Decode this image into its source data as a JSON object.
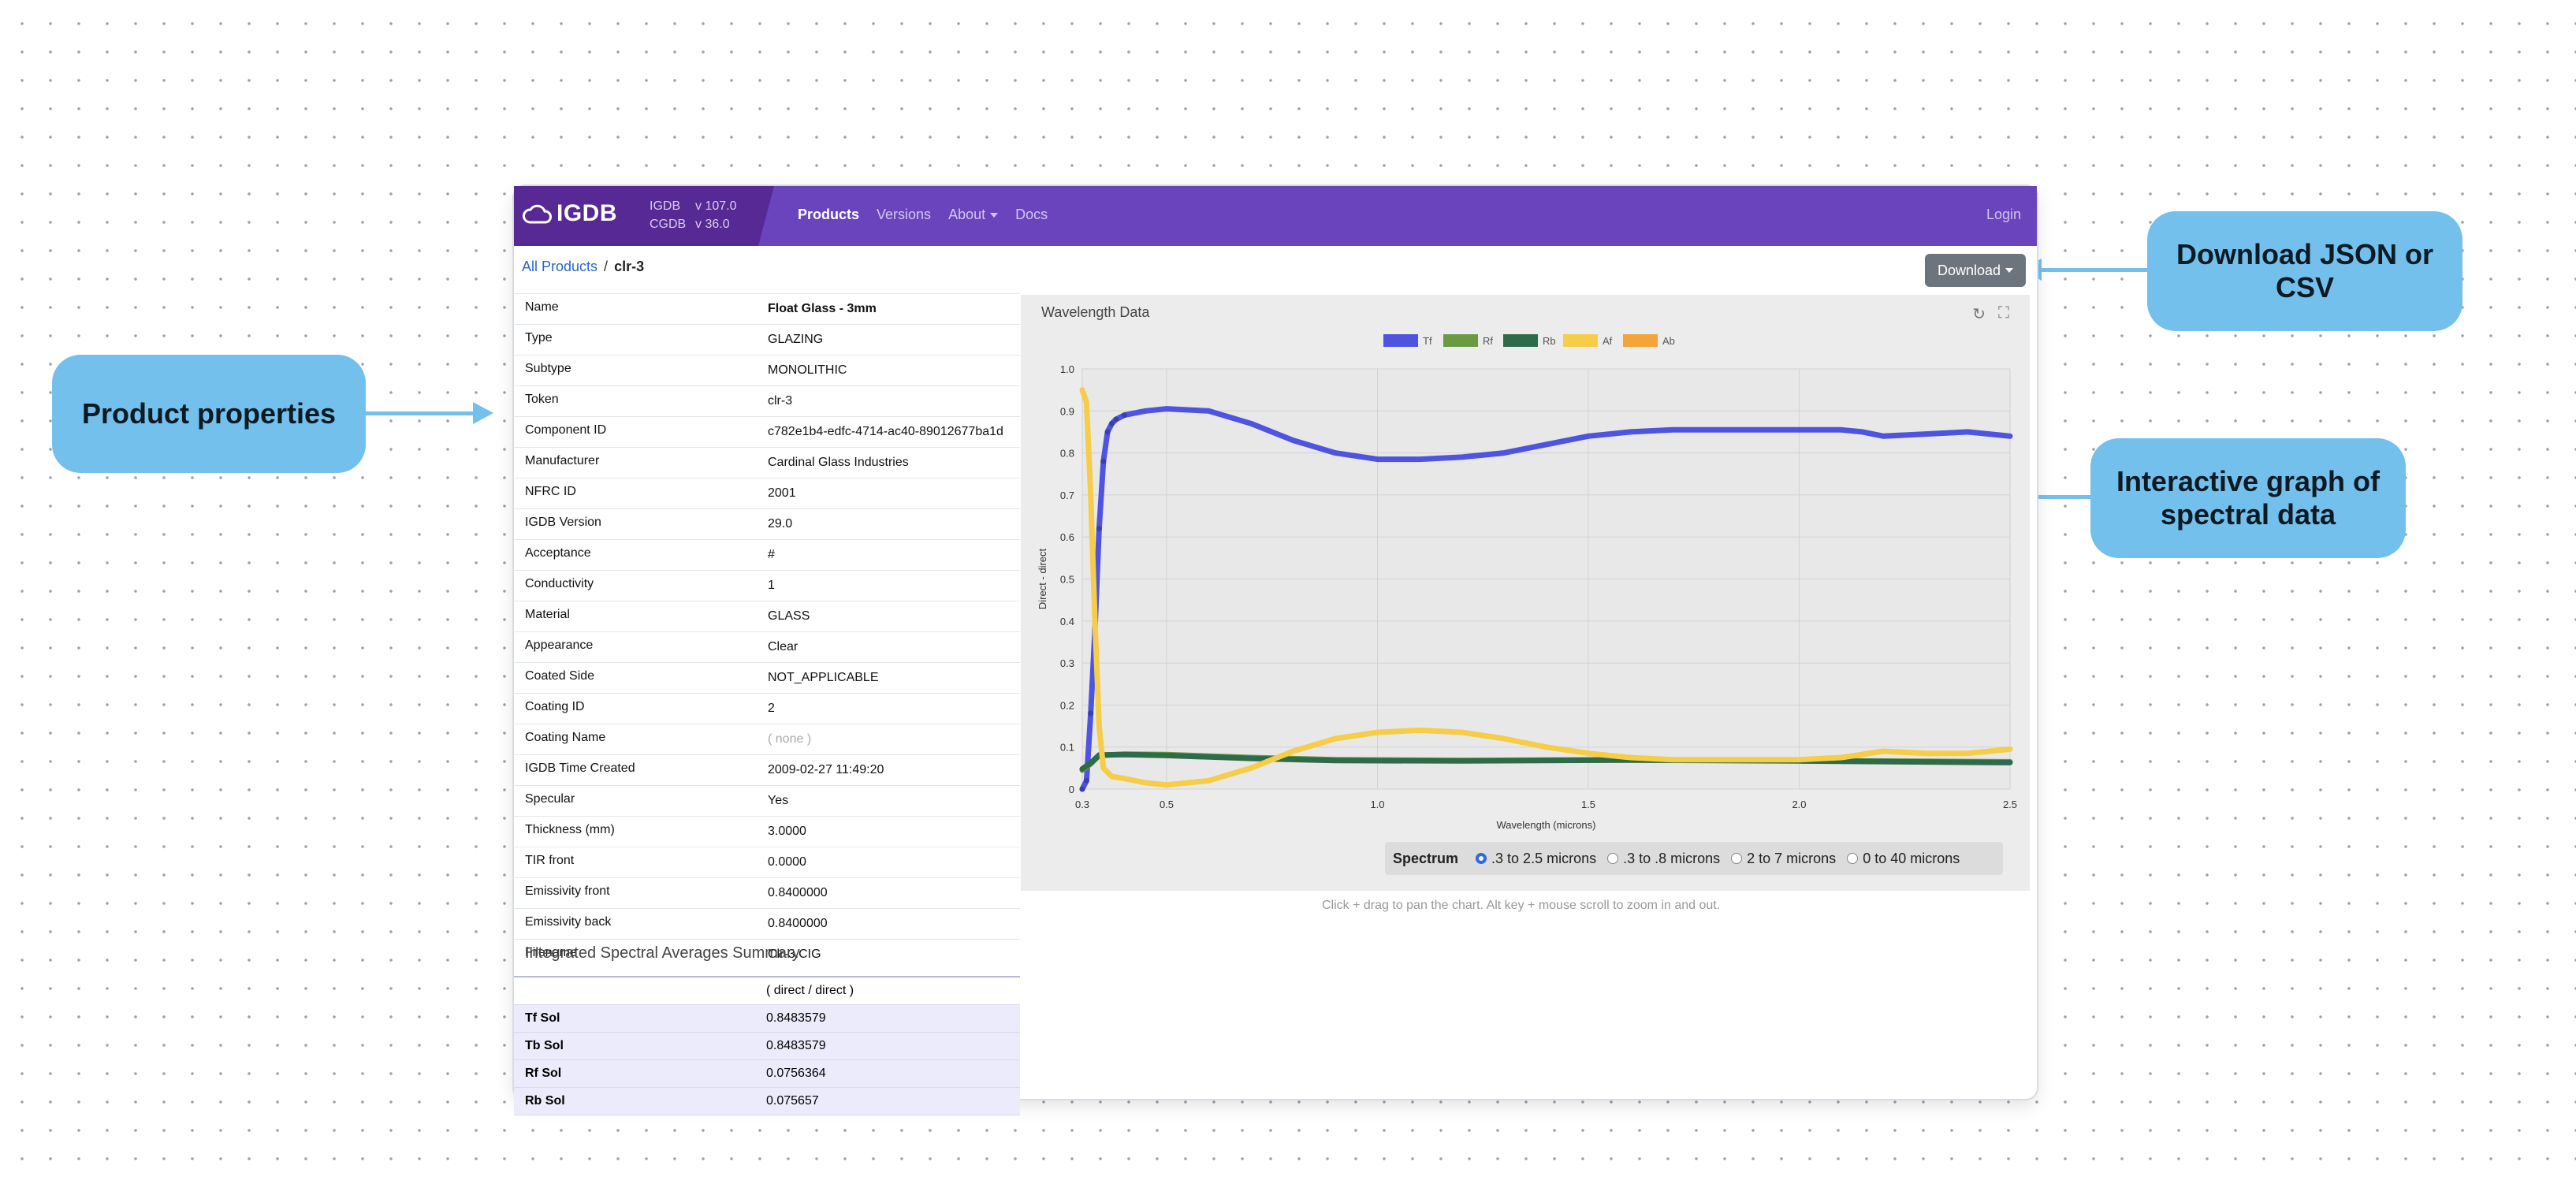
{
  "callouts": {
    "properties": "Product properties",
    "download": "Download JSON or CSV",
    "graph": "Interactive graph of spectral data"
  },
  "app": {
    "brand": "IGDB",
    "versions": [
      {
        "name": "IGDB",
        "version": "v 107.0"
      },
      {
        "name": "CGDB",
        "version": "v 36.0"
      }
    ],
    "nav": [
      "Products",
      "Versions",
      "About",
      "Docs"
    ],
    "login": "Login",
    "breadcrumb": {
      "root": "All Products",
      "sep": "/",
      "current": "clr-3"
    },
    "download_label": "Download"
  },
  "properties": [
    [
      "Name",
      "Float Glass - 3mm"
    ],
    [
      "Type",
      "GLAZING"
    ],
    [
      "Subtype",
      "MONOLITHIC"
    ],
    [
      "Token",
      "clr-3"
    ],
    [
      "Component ID",
      "c782e1b4-edfc-4714-ac40-89012677ba1d"
    ],
    [
      "Manufacturer",
      "Cardinal Glass Industries"
    ],
    [
      "NFRC ID",
      "2001"
    ],
    [
      "IGDB Version",
      "29.0"
    ],
    [
      "Acceptance",
      "#"
    ],
    [
      "Conductivity",
      "1"
    ],
    [
      "Material",
      "GLASS"
    ],
    [
      "Appearance",
      "Clear"
    ],
    [
      "Coated Side",
      "NOT_APPLICABLE"
    ],
    [
      "Coating ID",
      "2"
    ],
    [
      "Coating Name",
      "( none )"
    ],
    [
      "IGDB Time Created",
      "2009-02-27 11:49:20"
    ],
    [
      "Specular",
      "Yes"
    ],
    [
      "Thickness (mm)",
      "3.0000"
    ],
    [
      "TIR front",
      "0.0000"
    ],
    [
      "Emissivity front",
      "0.8400000"
    ],
    [
      "Emissivity back",
      "0.8400000"
    ],
    [
      "Filename",
      "Clr-3.CIG"
    ]
  ],
  "summary": {
    "title": "Integrated Spectral Averages Summary",
    "header": "( direct / direct )",
    "rows": [
      [
        "Tf Sol",
        "0.8483579"
      ],
      [
        "Tb Sol",
        "0.8483579"
      ],
      [
        "Rf Sol",
        "0.0756364"
      ],
      [
        "Rb Sol",
        "0.075657"
      ]
    ]
  },
  "panel": {
    "title": "Wavelength Data",
    "hint": "Click + drag to pan the chart. Alt key + mouse scroll to zoom in and out.",
    "spectrum_label": "Spectrum",
    "spectrum_options": [
      ".3 to 2.5 microns",
      ".3 to .8 microns",
      "2 to 7 microns",
      "0 to 40 microns"
    ],
    "spectrum_selected": 0
  },
  "chart_data": {
    "type": "line",
    "xlabel": "Wavelength (microns)",
    "ylabel": "Direct - direct",
    "xlim": [
      0.3,
      2.5
    ],
    "ylim": [
      0,
      1.0
    ],
    "xticks": [
      0.3,
      0.5,
      1.0,
      1.5,
      2.0,
      2.5
    ],
    "xtick_labels": [
      "0.3",
      "0.5",
      "1.0",
      "1.5",
      "2.0",
      "2.5"
    ],
    "yticks": [
      0,
      0.1,
      0.2,
      0.3,
      0.4,
      0.5,
      0.6,
      0.7,
      0.8,
      0.9,
      1.0
    ],
    "ytick_labels": [
      "0",
      "0.1",
      "0.2",
      "0.3",
      "0.4",
      "0.5",
      "0.6",
      "0.7",
      "0.8",
      "0.9",
      "1.0"
    ],
    "series": [
      {
        "name": "Tf",
        "color": "#4e54e0",
        "points": [
          [
            0.3,
            0.0
          ],
          [
            0.31,
            0.02
          ],
          [
            0.32,
            0.18
          ],
          [
            0.33,
            0.38
          ],
          [
            0.34,
            0.62
          ],
          [
            0.35,
            0.78
          ],
          [
            0.36,
            0.85
          ],
          [
            0.37,
            0.87
          ],
          [
            0.38,
            0.88
          ],
          [
            0.4,
            0.89
          ],
          [
            0.45,
            0.9
          ],
          [
            0.5,
            0.905
          ],
          [
            0.6,
            0.9
          ],
          [
            0.7,
            0.87
          ],
          [
            0.8,
            0.83
          ],
          [
            0.9,
            0.8
          ],
          [
            1.0,
            0.785
          ],
          [
            1.1,
            0.785
          ],
          [
            1.2,
            0.79
          ],
          [
            1.3,
            0.8
          ],
          [
            1.4,
            0.82
          ],
          [
            1.5,
            0.84
          ],
          [
            1.6,
            0.85
          ],
          [
            1.7,
            0.855
          ],
          [
            1.8,
            0.855
          ],
          [
            1.9,
            0.855
          ],
          [
            2.0,
            0.855
          ],
          [
            2.1,
            0.855
          ],
          [
            2.15,
            0.85
          ],
          [
            2.2,
            0.84
          ],
          [
            2.3,
            0.845
          ],
          [
            2.4,
            0.85
          ],
          [
            2.5,
            0.84
          ]
        ]
      },
      {
        "name": "Rf",
        "color": "#6a9a42",
        "points": [
          [
            0.3,
            0.045
          ],
          [
            0.32,
            0.06
          ],
          [
            0.34,
            0.08
          ],
          [
            0.4,
            0.083
          ],
          [
            0.5,
            0.082
          ],
          [
            0.7,
            0.075
          ],
          [
            0.9,
            0.07
          ],
          [
            1.2,
            0.068
          ],
          [
            1.6,
            0.07
          ],
          [
            2.0,
            0.068
          ],
          [
            2.5,
            0.065
          ]
        ]
      },
      {
        "name": "Rb",
        "color": "#2e6b48",
        "points": [
          [
            0.3,
            0.048
          ],
          [
            0.32,
            0.062
          ],
          [
            0.34,
            0.081
          ],
          [
            0.4,
            0.082
          ],
          [
            0.5,
            0.08
          ],
          [
            0.7,
            0.073
          ],
          [
            0.9,
            0.068
          ],
          [
            1.2,
            0.067
          ],
          [
            1.6,
            0.069
          ],
          [
            2.0,
            0.067
          ],
          [
            2.5,
            0.063
          ]
        ]
      },
      {
        "name": "Af",
        "color": "#f6cd48",
        "points": [
          [
            0.3,
            0.95
          ],
          [
            0.31,
            0.92
          ],
          [
            0.32,
            0.7
          ],
          [
            0.33,
            0.4
          ],
          [
            0.34,
            0.15
          ],
          [
            0.35,
            0.05
          ],
          [
            0.37,
            0.03
          ],
          [
            0.4,
            0.025
          ],
          [
            0.45,
            0.015
          ],
          [
            0.5,
            0.01
          ],
          [
            0.6,
            0.02
          ],
          [
            0.7,
            0.05
          ],
          [
            0.8,
            0.09
          ],
          [
            0.9,
            0.12
          ],
          [
            1.0,
            0.135
          ],
          [
            1.1,
            0.14
          ],
          [
            1.2,
            0.135
          ],
          [
            1.3,
            0.12
          ],
          [
            1.4,
            0.1
          ],
          [
            1.5,
            0.085
          ],
          [
            1.6,
            0.075
          ],
          [
            1.7,
            0.07
          ],
          [
            1.8,
            0.07
          ],
          [
            1.9,
            0.07
          ],
          [
            2.0,
            0.07
          ],
          [
            2.1,
            0.075
          ],
          [
            2.2,
            0.09
          ],
          [
            2.3,
            0.085
          ],
          [
            2.4,
            0.085
          ],
          [
            2.5,
            0.095
          ]
        ]
      },
      {
        "name": "Ab",
        "color": "#f4a53a",
        "points": []
      }
    ]
  }
}
